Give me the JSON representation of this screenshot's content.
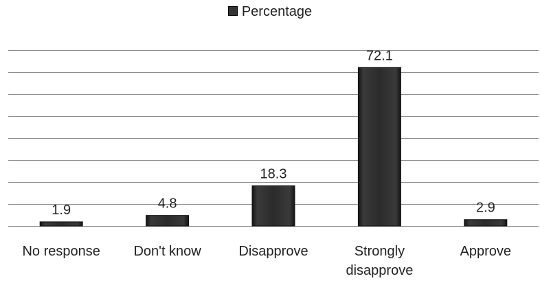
{
  "chart_data": {
    "type": "bar",
    "categories": [
      "No response",
      "Don't know",
      "Disapprove",
      "Strongly disapprove",
      "Approve"
    ],
    "category_lines": [
      [
        "No response"
      ],
      [
        "Don't know"
      ],
      [
        "Disapprove"
      ],
      [
        "Strongly",
        "disapprove"
      ],
      [
        "Approve"
      ]
    ],
    "series": [
      {
        "name": "Percentage",
        "values": [
          1.9,
          4.8,
          18.3,
          72.1,
          2.9
        ],
        "color": "#2b2b2b"
      }
    ],
    "data_labels": [
      "1.9",
      "4.8",
      "18.3",
      "72.1",
      "2.9"
    ],
    "title": "",
    "xlabel": "",
    "ylabel": "",
    "ylim": [
      0,
      80
    ],
    "grid": true,
    "legend": "top-center"
  }
}
